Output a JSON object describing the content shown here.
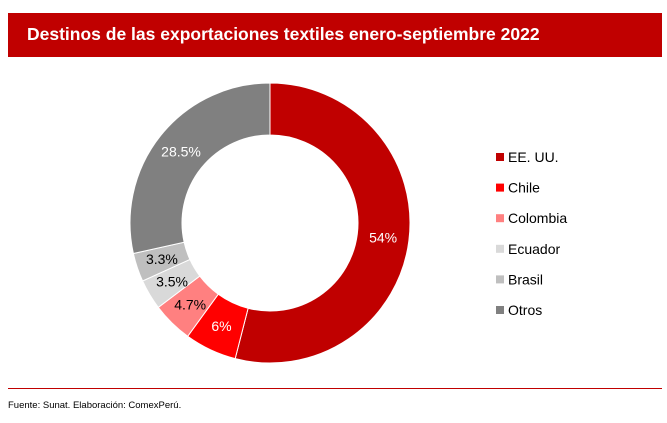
{
  "header": {
    "title": "Destinos de las exportaciones textiles enero-septiembre 2022"
  },
  "chart_data": {
    "type": "pie",
    "variant": "donut",
    "title": "Destinos de las exportaciones textiles enero-septiembre 2022",
    "legend_position": "right",
    "series": [
      {
        "name": "EE. UU.",
        "value": 54,
        "label": "54%",
        "color": "#c00000",
        "label_color": "#ffffff"
      },
      {
        "name": "Chile",
        "value": 6,
        "label": "6%",
        "color": "#ff0000",
        "label_color": "#ffffff"
      },
      {
        "name": "Colombia",
        "value": 4.7,
        "label": "4.7%",
        "color": "#ff8080",
        "label_color": "#000000"
      },
      {
        "name": "Ecuador",
        "value": 3.5,
        "label": "3.5%",
        "color": "#d9d9d9",
        "label_color": "#000000"
      },
      {
        "name": "Brasil",
        "value": 3.3,
        "label": "3.3%",
        "color": "#bfbfbf",
        "label_color": "#000000"
      },
      {
        "name": "Otros",
        "value": 28.5,
        "label": "28.5%",
        "color": "#808080",
        "label_color": "#ffffff"
      }
    ]
  },
  "footer": {
    "source": "Fuente: Sunat. Elaboración: ComexPerú."
  }
}
